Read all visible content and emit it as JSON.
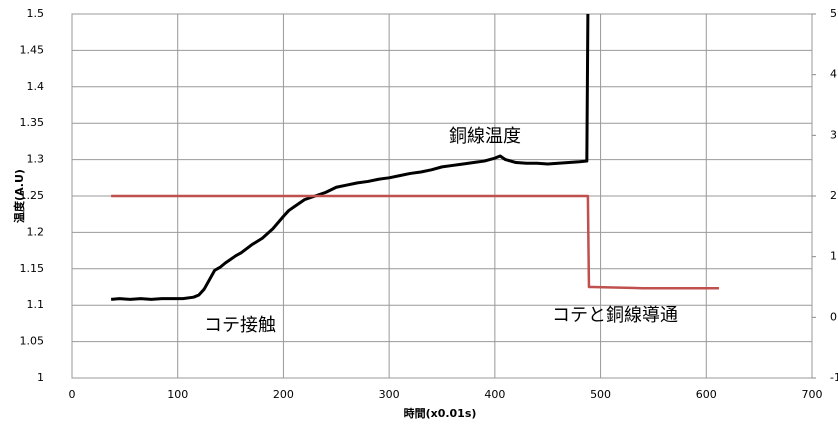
{
  "chart_data": {
    "type": "line",
    "xlabel": "時間(x0.01s)",
    "ylabel": "温度(A.U)",
    "xlim": [
      0,
      700
    ],
    "xticks": [
      0,
      100,
      200,
      300,
      400,
      500,
      600,
      700
    ],
    "ylim": [
      1,
      1.5
    ],
    "yticks": [
      1,
      1.05,
      1.1,
      1.15,
      1.2,
      1.25,
      1.3,
      1.35,
      1.4,
      1.45,
      1.5
    ],
    "y2lim": [
      -1,
      5
    ],
    "y2ticks": [
      -1,
      0,
      1,
      2,
      3,
      4,
      5
    ],
    "grid": true,
    "series": [
      {
        "color": "#000000",
        "x": [
          37,
          45,
          55,
          65,
          75,
          85,
          95,
          105,
          115,
          120,
          125,
          130,
          135,
          140,
          145,
          150,
          155,
          160,
          170,
          180,
          190,
          200,
          205,
          210,
          215,
          220,
          230,
          240,
          250,
          260,
          270,
          280,
          290,
          300,
          310,
          320,
          330,
          340,
          350,
          360,
          370,
          380,
          390,
          400,
          405,
          410,
          420,
          430,
          440,
          450,
          460,
          470,
          480,
          487,
          488
        ],
        "values": [
          1.108,
          1.109,
          1.108,
          1.109,
          1.108,
          1.109,
          1.109,
          1.109,
          1.111,
          1.114,
          1.122,
          1.135,
          1.148,
          1.152,
          1.158,
          1.163,
          1.168,
          1.172,
          1.183,
          1.192,
          1.205,
          1.222,
          1.23,
          1.235,
          1.24,
          1.245,
          1.25,
          1.255,
          1.262,
          1.265,
          1.268,
          1.27,
          1.273,
          1.275,
          1.278,
          1.281,
          1.283,
          1.286,
          1.29,
          1.292,
          1.294,
          1.296,
          1.298,
          1.302,
          1.305,
          1.3,
          1.296,
          1.295,
          1.295,
          1.294,
          1.295,
          1.296,
          1.297,
          1.298,
          1.5
        ]
      },
      {
        "color": "#c0504d",
        "axis": "y2",
        "x": [
          37,
          488,
          489,
          492,
          540,
          612
        ],
        "values": [
          2,
          2,
          0.5,
          0.5,
          0.48,
          0.48
        ]
      }
    ],
    "annotations": [
      "銅線温度",
      "コテ接触",
      "コテと銅線導通"
    ]
  }
}
